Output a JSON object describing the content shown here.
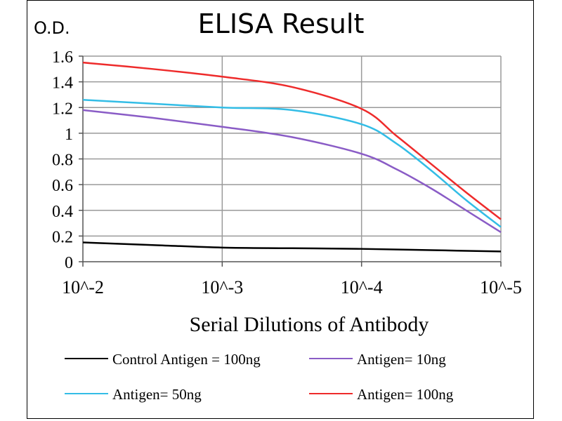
{
  "chart_data": {
    "type": "line",
    "title": "ELISA Result",
    "ylabel": "O.D.",
    "xlabel": "Serial Dilutions  of Antibody",
    "ylim": [
      0,
      1.6
    ],
    "yticks": [
      "0",
      "0.2",
      "0.4",
      "0.6",
      "0.8",
      "1",
      "1.2",
      "1.4",
      "1.6"
    ],
    "xticks": [
      "10^-2",
      "10^-3",
      "10^-4",
      "10^-5"
    ],
    "grid": true,
    "legend_position": "bottom",
    "series": [
      {
        "name": "Control Antigen = 100ng",
        "color": "#000000",
        "x": [
          0,
          0.5,
          1,
          1.5,
          2,
          2.5,
          3
        ],
        "y": [
          0.15,
          0.13,
          0.11,
          0.105,
          0.1,
          0.09,
          0.08
        ]
      },
      {
        "name": "Antigen= 10ng",
        "color": "#8a5cc6",
        "x": [
          0,
          0.5,
          1,
          1.5,
          2,
          2.25,
          2.5,
          2.75,
          3
        ],
        "y": [
          1.18,
          1.12,
          1.05,
          0.97,
          0.84,
          0.72,
          0.57,
          0.4,
          0.23
        ]
      },
      {
        "name": "Antigen= 50ng",
        "color": "#33bde6",
        "x": [
          0,
          0.5,
          1,
          1.5,
          2,
          2.25,
          2.5,
          2.75,
          3
        ],
        "y": [
          1.26,
          1.23,
          1.2,
          1.18,
          1.07,
          0.92,
          0.71,
          0.48,
          0.27
        ]
      },
      {
        "name": "Antigen= 100ng",
        "color": "#ee2b2b",
        "x": [
          0,
          0.5,
          1,
          1.5,
          2,
          2.25,
          2.5,
          2.75,
          3
        ],
        "y": [
          1.55,
          1.5,
          1.44,
          1.36,
          1.19,
          0.98,
          0.76,
          0.54,
          0.33
        ]
      }
    ]
  }
}
